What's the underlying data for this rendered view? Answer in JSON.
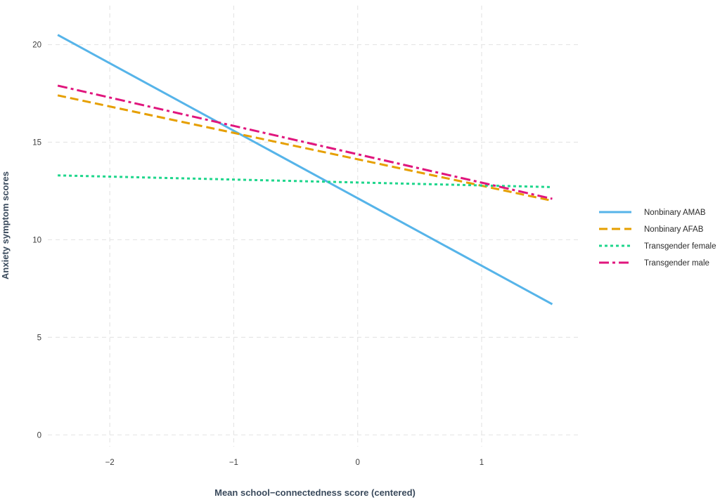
{
  "chart_data": {
    "type": "line",
    "xlabel": "Mean school−connectedness score (centered)",
    "ylabel": "Anxiety symptom scores",
    "xlim": [
      -2.5,
      1.8
    ],
    "ylim": [
      -0.6,
      22
    ],
    "x_ticks": [
      -2,
      -1,
      0,
      1
    ],
    "x_tick_labels": [
      "−2",
      "−1",
      "0",
      "1"
    ],
    "y_ticks": [
      0,
      5,
      10,
      15,
      20
    ],
    "y_tick_labels": [
      "0",
      "5",
      "10",
      "15",
      "20"
    ],
    "grid": true,
    "legend_position": "right",
    "series": [
      {
        "name": "Nonbinary AMAB",
        "color": "#56b4e9",
        "dash": "solid",
        "x": [
          -2.42,
          1.57
        ],
        "y": [
          20.5,
          6.7
        ]
      },
      {
        "name": "Nonbinary AFAB",
        "color": "#e69f00",
        "dash": "dashed",
        "x": [
          -2.42,
          1.57
        ],
        "y": [
          17.4,
          12.0
        ]
      },
      {
        "name": "Transgender female",
        "color": "#1fd68c",
        "dash": "dotted",
        "x": [
          -2.42,
          1.57
        ],
        "y": [
          13.3,
          12.7
        ]
      },
      {
        "name": "Transgender male",
        "color": "#e0167d",
        "dash": "dashdot",
        "x": [
          -2.42,
          1.57
        ],
        "y": [
          17.9,
          12.1
        ]
      }
    ]
  }
}
